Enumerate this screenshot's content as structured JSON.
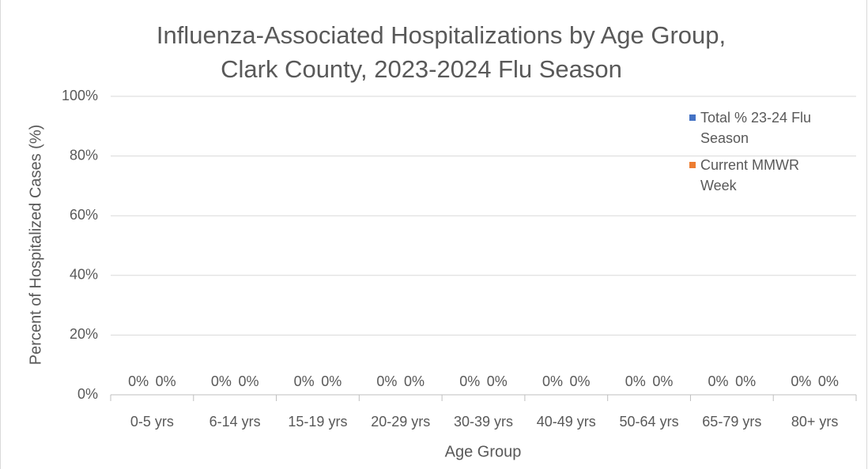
{
  "chart_data": {
    "type": "bar",
    "title": [
      "Influenza-Associated Hospitalizations by Age Group,",
      "Clark County, 2023-2024 Flu Season"
    ],
    "x_label": "Age Group",
    "y_label": "Percent of Hospitalized Cases (%)",
    "categories": [
      "0-5 yrs",
      "6-14 yrs",
      "15-19 yrs",
      "20-29 yrs",
      "30-39 yrs",
      "40-49 yrs",
      "50-64 yrs",
      "65-79 yrs",
      "80+ yrs"
    ],
    "series": [
      {
        "name": "Total % 23-24 Flu Season",
        "color": "#4472c4",
        "values": [
          0,
          0,
          0,
          0,
          0,
          0,
          0,
          0,
          0
        ],
        "value_labels": [
          "0%",
          "0%",
          "0%",
          "0%",
          "0%",
          "0%",
          "0%",
          "0%",
          "0%"
        ]
      },
      {
        "name": "Current MMWR Week",
        "color": "#ed7d31",
        "values": [
          0,
          0,
          0,
          0,
          0,
          0,
          0,
          0,
          0
        ],
        "value_labels": [
          "0%",
          "0%",
          "0%",
          "0%",
          "0%",
          "0%",
          "0%",
          "0%",
          "0%"
        ]
      }
    ],
    "ylim": [
      0,
      100
    ],
    "yticks": [
      {
        "value": 0,
        "label": "0%"
      },
      {
        "value": 20,
        "label": "20%"
      },
      {
        "value": 40,
        "label": "40%"
      },
      {
        "value": 60,
        "label": "60%"
      },
      {
        "value": 80,
        "label": "80%"
      },
      {
        "value": 100,
        "label": "100%"
      }
    ],
    "grid": true,
    "legend": "top-right"
  }
}
